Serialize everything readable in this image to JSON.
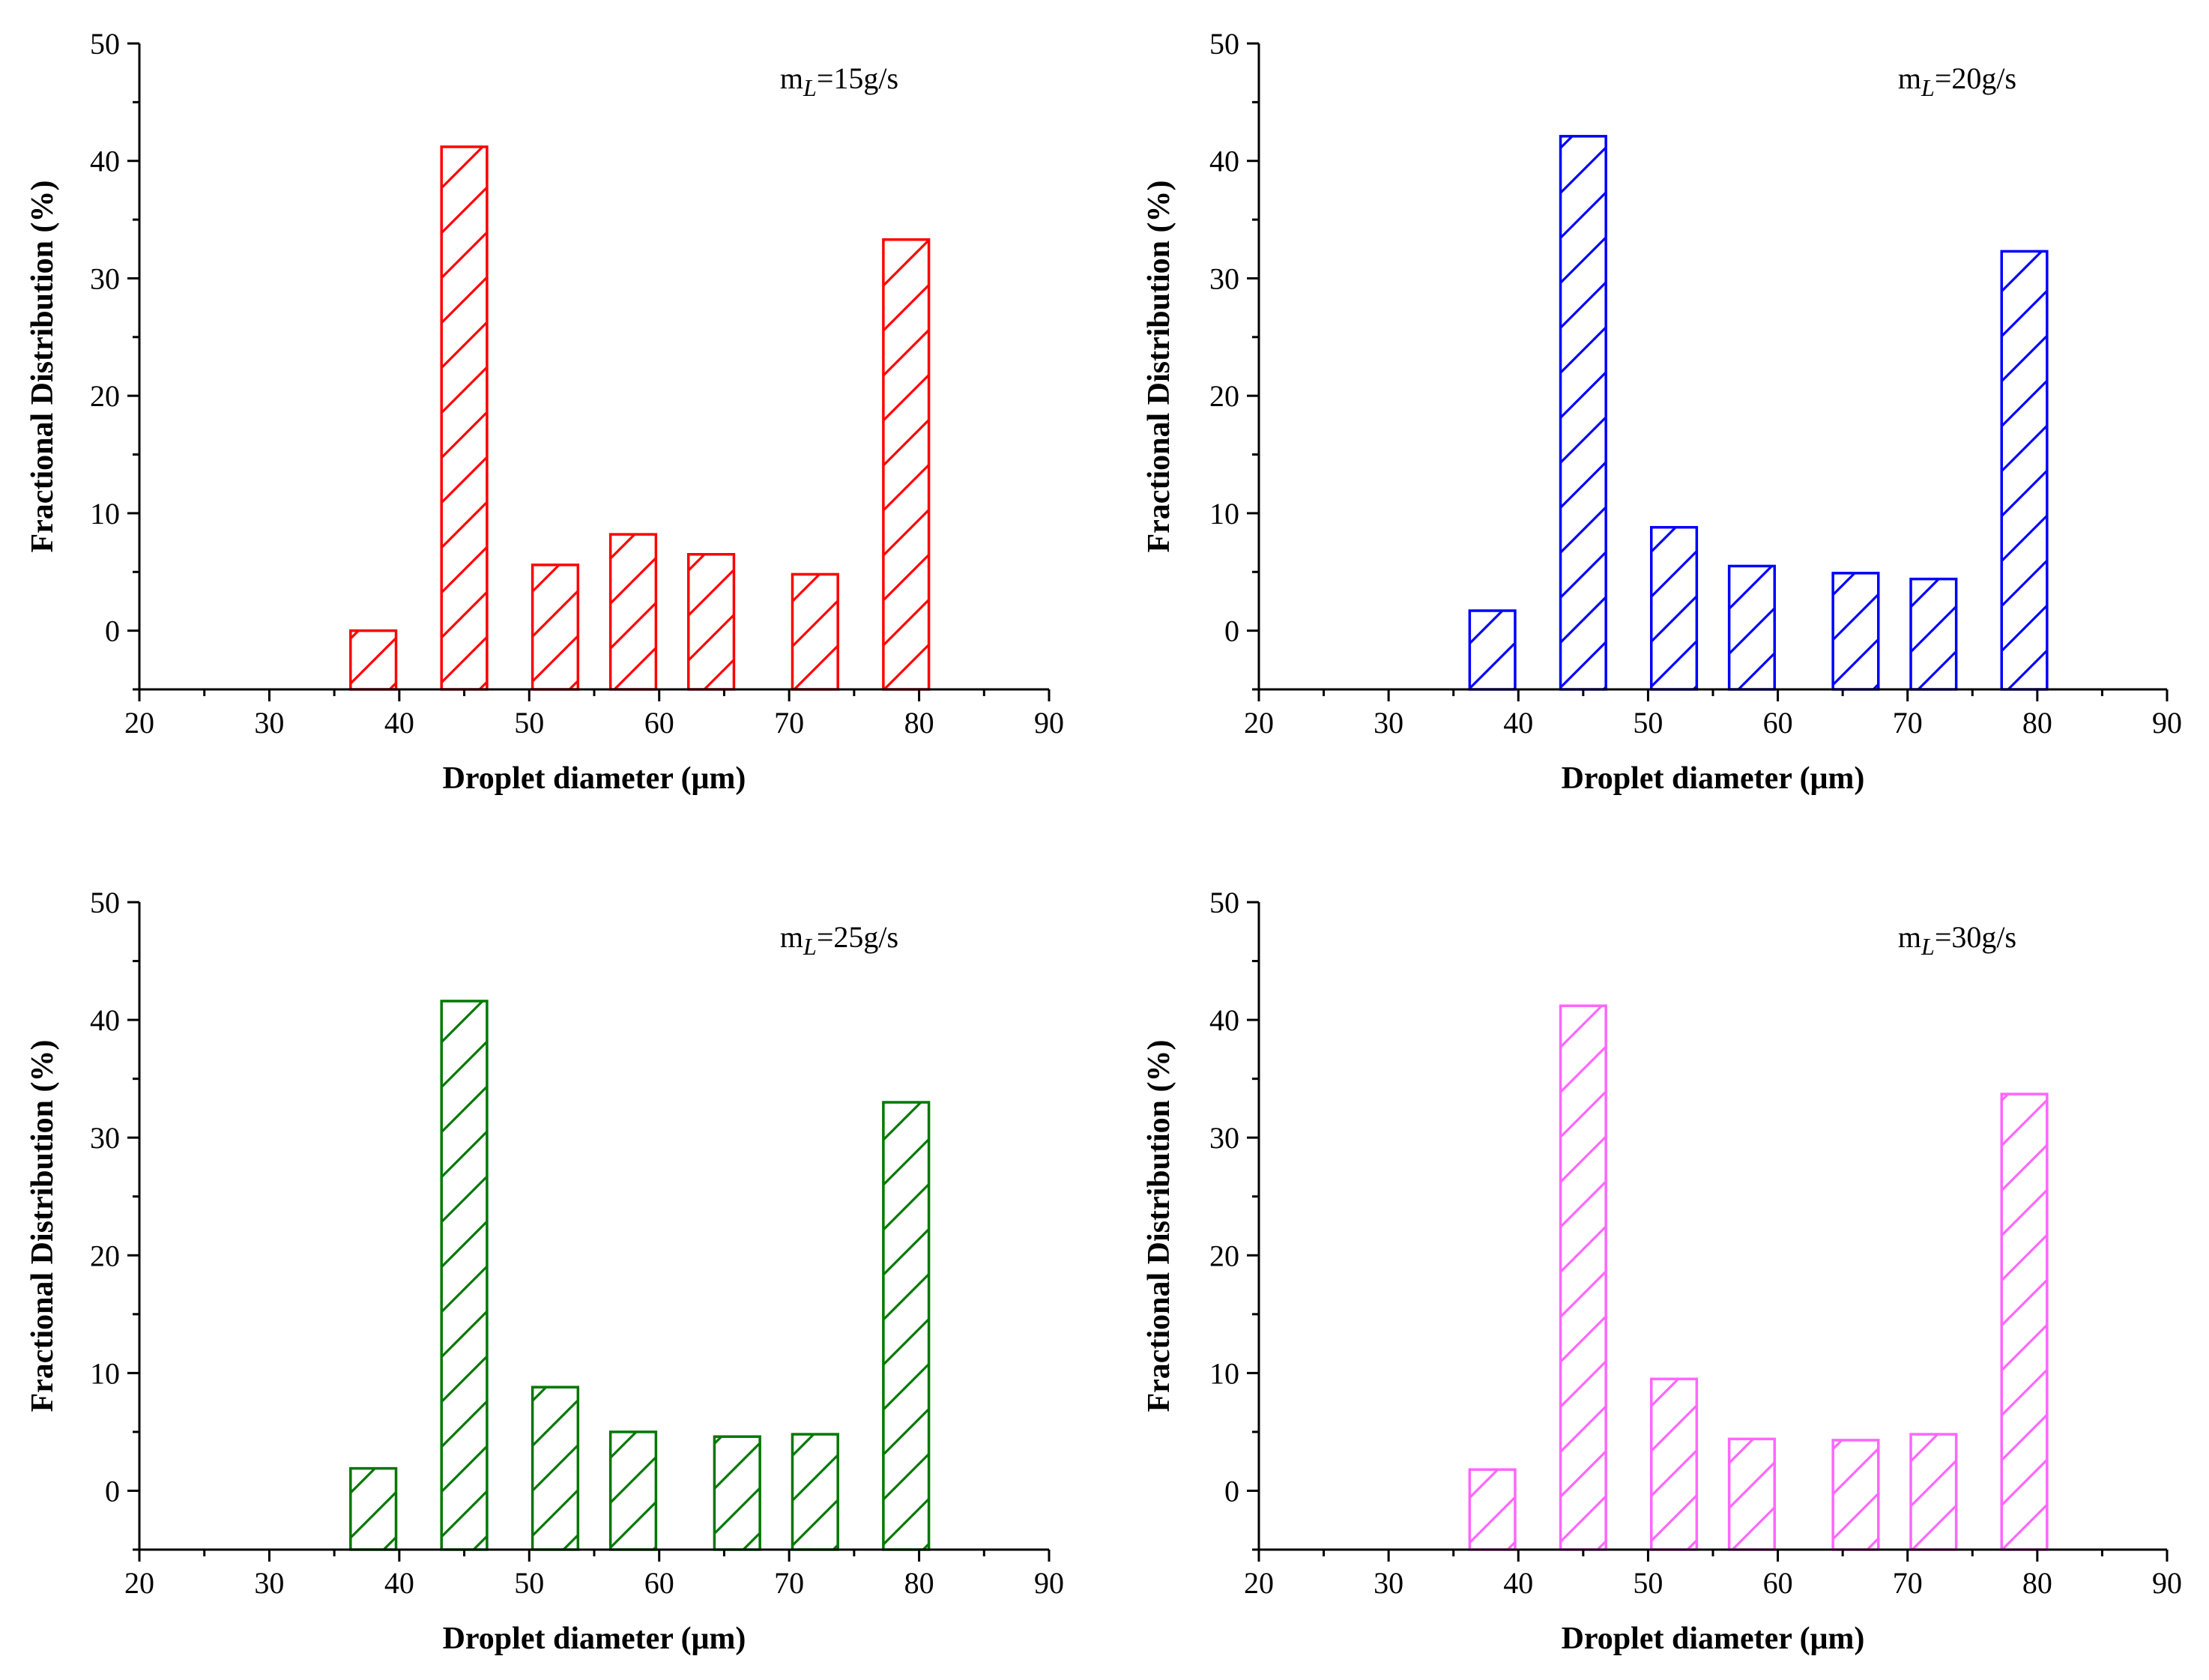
{
  "chart_data": [
    {
      "type": "bar",
      "panel": "top-left",
      "label_prefix": "m",
      "label_sub": "L",
      "label_suffix": "=15g/s",
      "color": "#ff0000",
      "xlabel": "Droplet diameter (μm)",
      "ylabel": "Fractional Distribution (%)",
      "xlim": [
        20,
        90
      ],
      "ylim": [
        -5,
        50
      ],
      "xticks": [
        20,
        30,
        40,
        50,
        60,
        70,
        80,
        90
      ],
      "yticks": [
        0,
        10,
        20,
        30,
        40,
        50
      ],
      "bar_width": 3.5,
      "x": [
        38,
        45,
        52,
        58,
        64,
        72,
        79
      ],
      "values": [
        0,
        41.2,
        5.6,
        8.2,
        6.5,
        4.8,
        33.3
      ]
    },
    {
      "type": "bar",
      "panel": "top-right",
      "label_prefix": "m",
      "label_sub": "L",
      "label_suffix": "=20g/s",
      "color": "#0000ff",
      "xlabel": "Droplet diameter (μm)",
      "ylabel": "Fractional Distribution (%)",
      "xlim": [
        20,
        90
      ],
      "ylim": [
        -5,
        50
      ],
      "xticks": [
        20,
        30,
        40,
        50,
        60,
        70,
        80,
        90
      ],
      "yticks": [
        0,
        10,
        20,
        30,
        40,
        50
      ],
      "bar_width": 3.5,
      "x": [
        38,
        45,
        52,
        58,
        66,
        72,
        79
      ],
      "values": [
        1.7,
        42.1,
        8.8,
        5.5,
        4.9,
        4.4,
        32.3
      ]
    },
    {
      "type": "bar",
      "panel": "bottom-left",
      "label_prefix": "m",
      "label_sub": "L",
      "label_suffix": "=25g/s",
      "color": "#007800",
      "xlabel": "Droplet diameter (μm)",
      "ylabel": "Fractional Distribution (%)",
      "xlim": [
        20,
        90
      ],
      "ylim": [
        -5,
        50
      ],
      "xticks": [
        20,
        30,
        40,
        50,
        60,
        70,
        80,
        90
      ],
      "yticks": [
        0,
        10,
        20,
        30,
        40,
        50
      ],
      "bar_width": 3.5,
      "x": [
        38,
        45,
        52,
        58,
        66,
        72,
        79
      ],
      "values": [
        1.9,
        41.6,
        8.8,
        5.0,
        4.6,
        4.8,
        33.0
      ]
    },
    {
      "type": "bar",
      "panel": "bottom-right",
      "label_prefix": "m",
      "label_sub": "L",
      "label_suffix": "=30g/s",
      "color": "#ff66ff",
      "xlabel": "Droplet diameter (μm)",
      "ylabel": "Fractional Distribution (%)",
      "xlim": [
        20,
        90
      ],
      "ylim": [
        -5,
        50
      ],
      "xticks": [
        20,
        30,
        40,
        50,
        60,
        70,
        80,
        90
      ],
      "yticks": [
        0,
        10,
        20,
        30,
        40,
        50
      ],
      "bar_width": 3.5,
      "x": [
        38,
        45,
        52,
        58,
        66,
        72,
        79
      ],
      "values": [
        1.8,
        41.2,
        9.5,
        4.4,
        4.3,
        4.8,
        33.7
      ]
    }
  ]
}
